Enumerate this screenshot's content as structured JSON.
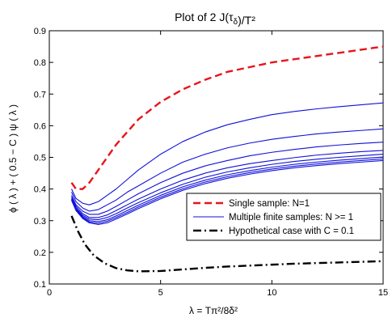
{
  "chart_data": {
    "type": "line",
    "title": "Plot of 2 J(τ_δ)/T²",
    "xlabel": "λ = Tπ²/8δ²",
    "ylabel": "ϕ ( λ ) + ( 0.5 − C ) ψ ( λ )",
    "xlim": [
      0,
      15
    ],
    "ylim": [
      0.1,
      0.9
    ],
    "xticks": [
      0,
      5,
      10,
      15
    ],
    "yticks": [
      0.1,
      0.2,
      0.3,
      0.4,
      0.5,
      0.6,
      0.7,
      0.8,
      0.9
    ],
    "grid": false,
    "legend_position": "right",
    "legend": [
      {
        "label": "Single sample: N=1",
        "color": "#e8141c",
        "style": "dashed"
      },
      {
        "label": "Multiple finite samples: N >= 1",
        "color": "#1010d8",
        "style": "solid"
      },
      {
        "label": "Hypothetical case with C = 0.1",
        "color": "#000000",
        "style": "dashdot"
      }
    ],
    "series": [
      {
        "group": "single",
        "color": "#e8141c",
        "style": "dashed",
        "x": [
          1,
          1.2,
          1.5,
          1.8,
          2.2,
          2.6,
          3,
          3.5,
          4,
          5,
          6,
          7,
          8,
          9,
          10,
          11,
          12,
          13,
          14,
          15
        ],
        "y": [
          0.42,
          0.4,
          0.4,
          0.42,
          0.46,
          0.5,
          0.54,
          0.58,
          0.62,
          0.675,
          0.715,
          0.745,
          0.77,
          0.785,
          0.8,
          0.81,
          0.82,
          0.83,
          0.84,
          0.85
        ]
      },
      {
        "group": "multiple",
        "color": "#1010d8",
        "style": "solid",
        "x": [
          1,
          1.2,
          1.5,
          1.8,
          2.2,
          2.6,
          3,
          3.5,
          4,
          5,
          6,
          7,
          8,
          9,
          10,
          11,
          12,
          13,
          14,
          15
        ],
        "y": [
          0.4,
          0.37,
          0.355,
          0.35,
          0.36,
          0.38,
          0.4,
          0.43,
          0.46,
          0.51,
          0.55,
          0.58,
          0.603,
          0.62,
          0.635,
          0.645,
          0.653,
          0.66,
          0.666,
          0.672
        ]
      },
      {
        "group": "multiple",
        "color": "#1010d8",
        "style": "solid",
        "x": [
          1,
          1.2,
          1.5,
          1.8,
          2.2,
          2.6,
          3,
          3.5,
          4,
          5,
          6,
          7,
          8,
          9,
          10,
          11,
          12,
          13,
          14,
          15
        ],
        "y": [
          0.39,
          0.36,
          0.34,
          0.33,
          0.335,
          0.35,
          0.365,
          0.39,
          0.41,
          0.45,
          0.485,
          0.51,
          0.53,
          0.545,
          0.557,
          0.566,
          0.574,
          0.58,
          0.585,
          0.59
        ]
      },
      {
        "group": "multiple",
        "color": "#1010d8",
        "style": "solid",
        "x": [
          1,
          1.2,
          1.5,
          1.8,
          2.2,
          2.6,
          3,
          3.5,
          4,
          5,
          6,
          7,
          8,
          9,
          10,
          11,
          12,
          13,
          14,
          15
        ],
        "y": [
          0.38,
          0.35,
          0.33,
          0.32,
          0.32,
          0.33,
          0.345,
          0.365,
          0.385,
          0.42,
          0.45,
          0.473,
          0.49,
          0.505,
          0.516,
          0.525,
          0.533,
          0.539,
          0.544,
          0.548
        ]
      },
      {
        "group": "multiple",
        "color": "#1010d8",
        "style": "solid",
        "x": [
          1,
          1.2,
          1.5,
          1.8,
          2.2,
          2.6,
          3,
          3.5,
          4,
          5,
          6,
          7,
          8,
          9,
          10,
          11,
          12,
          13,
          14,
          15
        ],
        "y": [
          0.375,
          0.345,
          0.322,
          0.31,
          0.31,
          0.318,
          0.332,
          0.35,
          0.368,
          0.4,
          0.428,
          0.45,
          0.467,
          0.48,
          0.49,
          0.499,
          0.507,
          0.513,
          0.518,
          0.522
        ]
      },
      {
        "group": "multiple",
        "color": "#1010d8",
        "style": "solid",
        "x": [
          1,
          1.2,
          1.5,
          1.8,
          2.2,
          2.6,
          3,
          3.5,
          4,
          5,
          6,
          7,
          8,
          9,
          10,
          11,
          12,
          13,
          14,
          15
        ],
        "y": [
          0.37,
          0.34,
          0.317,
          0.305,
          0.303,
          0.31,
          0.322,
          0.34,
          0.357,
          0.388,
          0.415,
          0.437,
          0.454,
          0.467,
          0.478,
          0.487,
          0.494,
          0.5,
          0.505,
          0.51
        ]
      },
      {
        "group": "multiple",
        "color": "#1010d8",
        "style": "solid",
        "x": [
          1,
          1.2,
          1.5,
          1.8,
          2.2,
          2.6,
          3,
          3.5,
          4,
          5,
          6,
          7,
          8,
          9,
          10,
          11,
          12,
          13,
          14,
          15
        ],
        "y": [
          0.368,
          0.337,
          0.313,
          0.3,
          0.297,
          0.303,
          0.315,
          0.332,
          0.349,
          0.38,
          0.407,
          0.428,
          0.445,
          0.458,
          0.469,
          0.478,
          0.485,
          0.491,
          0.496,
          0.501
        ]
      },
      {
        "group": "multiple",
        "color": "#1010d8",
        "style": "solid",
        "x": [
          1,
          1.2,
          1.5,
          1.8,
          2.2,
          2.6,
          3,
          3.5,
          4,
          5,
          6,
          7,
          8,
          9,
          10,
          11,
          12,
          13,
          14,
          15
        ],
        "y": [
          0.366,
          0.334,
          0.31,
          0.296,
          0.292,
          0.298,
          0.31,
          0.326,
          0.343,
          0.374,
          0.401,
          0.422,
          0.439,
          0.452,
          0.463,
          0.472,
          0.479,
          0.485,
          0.49,
          0.495
        ]
      },
      {
        "group": "multiple",
        "color": "#1010d8",
        "style": "solid",
        "x": [
          1,
          1.2,
          1.5,
          1.8,
          2.2,
          2.6,
          3,
          3.5,
          4,
          5,
          6,
          7,
          8,
          9,
          10,
          11,
          12,
          13,
          14,
          15
        ],
        "y": [
          0.364,
          0.332,
          0.307,
          0.293,
          0.288,
          0.293,
          0.305,
          0.321,
          0.338,
          0.369,
          0.396,
          0.417,
          0.434,
          0.447,
          0.458,
          0.467,
          0.474,
          0.48,
          0.485,
          0.49
        ]
      },
      {
        "group": "hypothetical",
        "color": "#000000",
        "style": "dashdot",
        "x": [
          1,
          1.3,
          1.6,
          2,
          2.5,
          3,
          3.5,
          4,
          5,
          6,
          7,
          8,
          9,
          10,
          11,
          12,
          13,
          14,
          15
        ],
        "y": [
          0.315,
          0.265,
          0.225,
          0.19,
          0.165,
          0.15,
          0.143,
          0.14,
          0.141,
          0.146,
          0.151,
          0.155,
          0.158,
          0.161,
          0.164,
          0.166,
          0.168,
          0.17,
          0.172
        ]
      }
    ]
  }
}
